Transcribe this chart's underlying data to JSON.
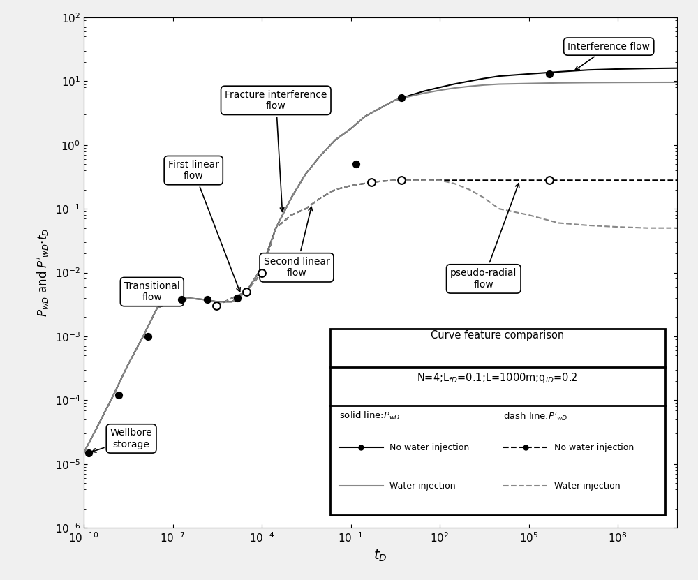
{
  "xlim": [
    1e-10,
    10000000000.0
  ],
  "ylim": [
    1e-06,
    100.0
  ],
  "solid_nowater_x": [
    1e-10,
    3e-10,
    1e-09,
    3e-09,
    1e-08,
    3e-08,
    1e-07,
    3e-07,
    1e-06,
    3e-06,
    1e-05,
    3e-05,
    0.0001,
    0.0003,
    0.001,
    0.003,
    0.01,
    0.03,
    0.1,
    0.3,
    1,
    3,
    10,
    30,
    100,
    300,
    1000,
    3000,
    10000,
    100000,
    1000000,
    10000000,
    100000000.0,
    1000000000.0,
    10000000000.0
  ],
  "solid_nowater_y": [
    1.5e-05,
    4e-05,
    0.00012,
    0.00035,
    0.001,
    0.0028,
    0.0035,
    0.004,
    0.0038,
    0.0035,
    0.0035,
    0.005,
    0.012,
    0.05,
    0.15,
    0.35,
    0.7,
    1.2,
    1.8,
    2.8,
    3.8,
    5.0,
    6.0,
    7.0,
    8.0,
    9.0,
    10.0,
    11.0,
    12.0,
    13.0,
    14.0,
    15.0,
    15.5,
    15.8,
    16.0
  ],
  "solid_water_x": [
    1e-10,
    3e-10,
    1e-09,
    3e-09,
    1e-08,
    3e-08,
    1e-07,
    3e-07,
    1e-06,
    3e-06,
    1e-05,
    3e-05,
    0.0001,
    0.0003,
    0.001,
    0.003,
    0.01,
    0.03,
    0.1,
    0.3,
    1,
    3,
    10,
    30,
    100,
    300,
    1000,
    3000,
    10000,
    100000,
    1000000,
    10000000,
    100000000.0,
    1000000000.0,
    10000000000.0
  ],
  "solid_water_y": [
    1.5e-05,
    4e-05,
    0.00012,
    0.00035,
    0.001,
    0.0028,
    0.0035,
    0.004,
    0.0038,
    0.0035,
    0.0035,
    0.005,
    0.012,
    0.05,
    0.15,
    0.35,
    0.7,
    1.2,
    1.8,
    2.8,
    3.8,
    5.0,
    5.8,
    6.5,
    7.2,
    7.8,
    8.3,
    8.7,
    9.0,
    9.2,
    9.4,
    9.5,
    9.55,
    9.58,
    9.6
  ],
  "dash_nowater_x": [
    3e-06,
    1e-05,
    3e-05,
    0.0001,
    0.0003,
    0.001,
    0.003,
    0.01,
    0.03,
    0.1,
    0.3,
    1,
    3,
    10,
    30,
    100,
    300,
    1000,
    3000,
    10000,
    100000,
    1000000,
    10000000,
    100000000.0,
    1000000000.0,
    10000000000.0
  ],
  "dash_nowater_y": [
    0.003,
    0.004,
    0.005,
    0.01,
    0.05,
    0.08,
    0.1,
    0.15,
    0.2,
    0.23,
    0.25,
    0.27,
    0.28,
    0.28,
    0.28,
    0.28,
    0.28,
    0.28,
    0.28,
    0.28,
    0.28,
    0.28,
    0.28,
    0.28,
    0.28,
    0.28
  ],
  "dash_water_x": [
    3e-06,
    1e-05,
    3e-05,
    0.0001,
    0.0003,
    0.001,
    0.003,
    0.01,
    0.03,
    0.1,
    0.3,
    1,
    3,
    10,
    30,
    100,
    300,
    1000,
    3000,
    10000,
    100000,
    1000000,
    10000000,
    100000000.0,
    1000000000.0,
    10000000000.0
  ],
  "dash_water_y": [
    0.003,
    0.004,
    0.005,
    0.01,
    0.05,
    0.08,
    0.1,
    0.15,
    0.2,
    0.23,
    0.25,
    0.27,
    0.28,
    0.28,
    0.28,
    0.28,
    0.25,
    0.2,
    0.15,
    0.1,
    0.08,
    0.06,
    0.055,
    0.052,
    0.05,
    0.05
  ],
  "solid_nowater_markers_x": [
    1.5e-10,
    1.5e-09,
    1.5e-08,
    2e-07,
    1.5e-06,
    1.5e-05,
    0.15,
    5.0,
    500000.0
  ],
  "solid_nowater_markers_y": [
    1.5e-05,
    0.00012,
    0.001,
    0.0038,
    0.0038,
    0.004,
    0.5,
    5.5,
    13.0
  ],
  "dash_nowater_markers_x": [
    3e-06,
    3e-05,
    0.0001,
    0.5,
    5.0,
    500000.0
  ],
  "dash_nowater_markers_y": [
    0.003,
    0.005,
    0.01,
    0.26,
    0.28,
    0.28
  ],
  "figure_bg": "#f0f0f0",
  "plot_bg": "#ffffff"
}
